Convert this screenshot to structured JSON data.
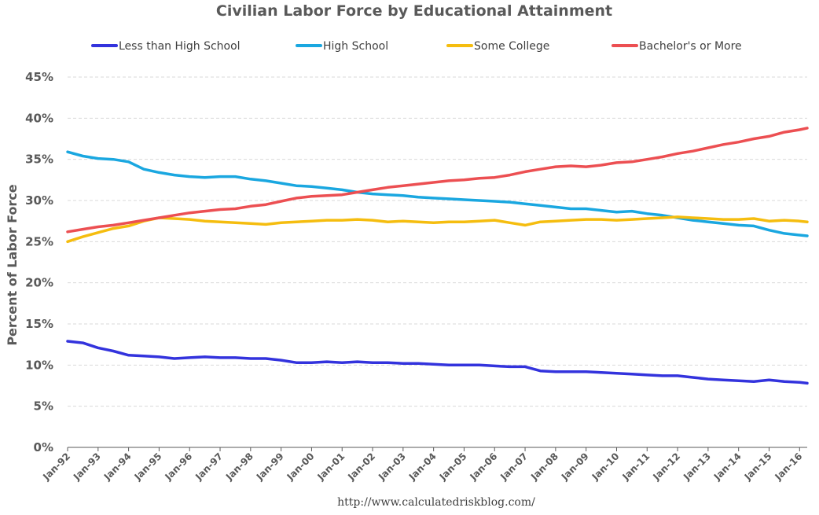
{
  "chart_data": {
    "type": "line",
    "title": "Civilian Labor Force by Educational Attainment",
    "ylabel": "Percent of Labor Force",
    "xlabel": "",
    "source": "http://www.calculatedriskblog.com/",
    "ylim": [
      0,
      45
    ],
    "yticks": [
      0,
      5,
      10,
      15,
      20,
      25,
      30,
      35,
      40,
      45
    ],
    "ytick_labels": [
      "0%",
      "5%",
      "10%",
      "15%",
      "20%",
      "25%",
      "30%",
      "35%",
      "40%",
      "45%"
    ],
    "xlim": [
      "1992-01",
      "2016-04"
    ],
    "xtick_labels": [
      "Jan-92",
      "Jan-93",
      "Jan-94",
      "Jan-95",
      "Jan-96",
      "Jan-97",
      "Jan-98",
      "Jan-99",
      "Jan-00",
      "Jan-01",
      "Jan-02",
      "Jan-03",
      "Jan-04",
      "Jan-05",
      "Jan-06",
      "Jan-07",
      "Jan-08",
      "Jan-09",
      "Jan-10",
      "Jan-11",
      "Jan-12",
      "Jan-13",
      "Jan-14",
      "Jan-15",
      "Jan-16"
    ],
    "grid": true,
    "legend_position": "top",
    "x": [
      "1992-01",
      "1992-07",
      "1993-01",
      "1993-07",
      "1994-01",
      "1994-07",
      "1995-01",
      "1995-07",
      "1996-01",
      "1996-07",
      "1997-01",
      "1997-07",
      "1998-01",
      "1998-07",
      "1999-01",
      "1999-07",
      "2000-01",
      "2000-07",
      "2001-01",
      "2001-07",
      "2002-01",
      "2002-07",
      "2003-01",
      "2003-07",
      "2004-01",
      "2004-07",
      "2005-01",
      "2005-07",
      "2006-01",
      "2006-07",
      "2007-01",
      "2007-07",
      "2008-01",
      "2008-07",
      "2009-01",
      "2009-07",
      "2010-01",
      "2010-07",
      "2011-01",
      "2011-07",
      "2012-01",
      "2012-07",
      "2013-01",
      "2013-07",
      "2014-01",
      "2014-07",
      "2015-01",
      "2015-07",
      "2016-01",
      "2016-04"
    ],
    "series": [
      {
        "name": "Less than High School",
        "color": "#3333dd",
        "values": [
          12.9,
          12.7,
          12.1,
          11.7,
          11.2,
          11.1,
          11.0,
          10.8,
          10.9,
          11.0,
          10.9,
          10.9,
          10.8,
          10.8,
          10.6,
          10.3,
          10.3,
          10.4,
          10.3,
          10.4,
          10.3,
          10.3,
          10.2,
          10.2,
          10.1,
          10.0,
          10.0,
          10.0,
          9.9,
          9.8,
          9.8,
          9.3,
          9.2,
          9.2,
          9.2,
          9.1,
          9.0,
          8.9,
          8.8,
          8.7,
          8.7,
          8.5,
          8.3,
          8.2,
          8.1,
          8.0,
          8.2,
          8.0,
          7.9,
          7.8
        ]
      },
      {
        "name": "High School",
        "color": "#1aa7e0",
        "values": [
          35.9,
          35.4,
          35.1,
          35.0,
          34.7,
          33.8,
          33.4,
          33.1,
          32.9,
          32.8,
          32.9,
          32.9,
          32.6,
          32.4,
          32.1,
          31.8,
          31.7,
          31.5,
          31.3,
          31.0,
          30.8,
          30.7,
          30.6,
          30.4,
          30.3,
          30.2,
          30.1,
          30.0,
          29.9,
          29.8,
          29.6,
          29.4,
          29.2,
          29.0,
          29.0,
          28.8,
          28.6,
          28.7,
          28.4,
          28.2,
          27.9,
          27.6,
          27.4,
          27.2,
          27.0,
          26.9,
          26.4,
          26.0,
          25.8,
          25.7
        ]
      },
      {
        "name": "Some College",
        "color": "#f5bd0f",
        "values": [
          25.0,
          25.6,
          26.1,
          26.6,
          26.9,
          27.5,
          27.9,
          27.8,
          27.7,
          27.5,
          27.4,
          27.3,
          27.2,
          27.1,
          27.3,
          27.4,
          27.5,
          27.6,
          27.6,
          27.7,
          27.6,
          27.4,
          27.5,
          27.4,
          27.3,
          27.4,
          27.4,
          27.5,
          27.6,
          27.3,
          27.0,
          27.4,
          27.5,
          27.6,
          27.7,
          27.7,
          27.6,
          27.7,
          27.8,
          27.9,
          28.0,
          27.9,
          27.8,
          27.7,
          27.7,
          27.8,
          27.5,
          27.6,
          27.5,
          27.4
        ]
      },
      {
        "name": "Bachelor's or More",
        "color": "#ec4f52",
        "values": [
          26.2,
          26.5,
          26.8,
          27.0,
          27.3,
          27.6,
          27.9,
          28.2,
          28.5,
          28.7,
          28.9,
          29.0,
          29.3,
          29.5,
          29.9,
          30.3,
          30.5,
          30.6,
          30.7,
          31.0,
          31.3,
          31.6,
          31.8,
          32.0,
          32.2,
          32.4,
          32.5,
          32.7,
          32.8,
          33.1,
          33.5,
          33.8,
          34.1,
          34.2,
          34.1,
          34.3,
          34.6,
          34.7,
          35.0,
          35.3,
          35.7,
          36.0,
          36.4,
          36.8,
          37.1,
          37.5,
          37.8,
          38.3,
          38.6,
          38.8
        ]
      }
    ]
  }
}
